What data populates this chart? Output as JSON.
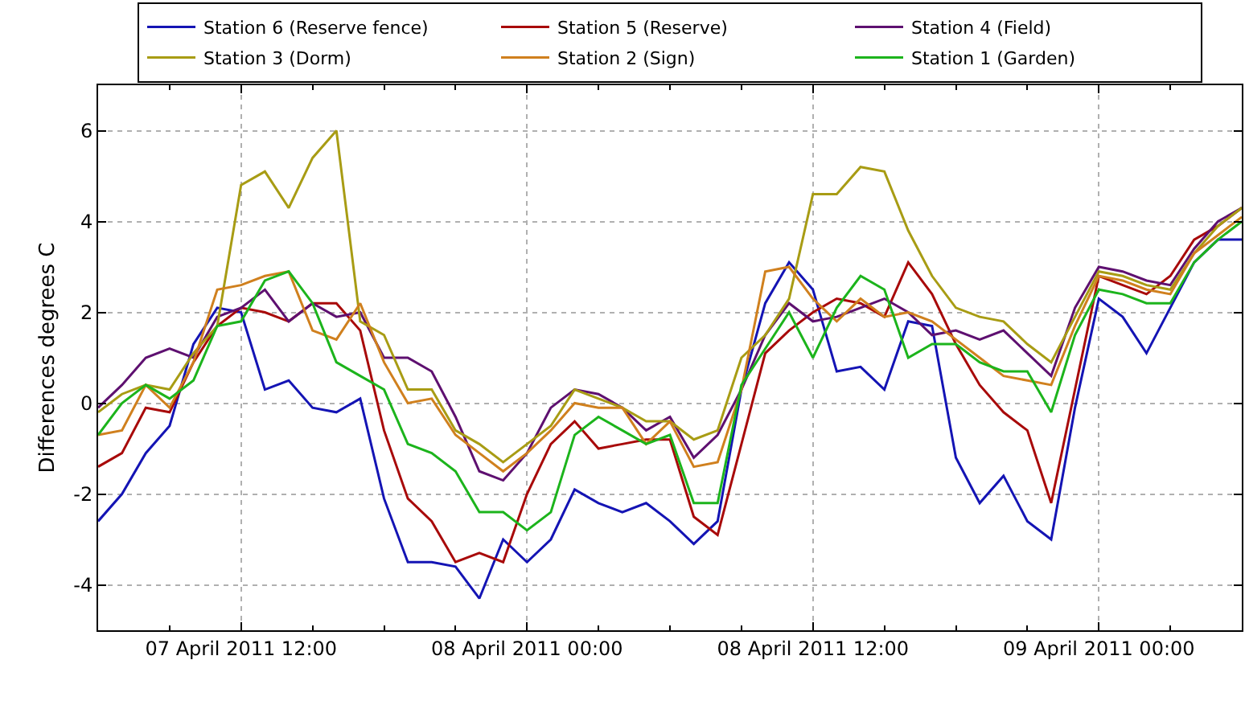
{
  "chart_data": {
    "type": "line",
    "ylabel": "Differences degrees C",
    "x": [
      "2011-04-07T06:00",
      "2011-04-07T07:00",
      "2011-04-07T08:00",
      "2011-04-07T09:00",
      "2011-04-07T10:00",
      "2011-04-07T11:00",
      "2011-04-07T12:00",
      "2011-04-07T13:00",
      "2011-04-07T14:00",
      "2011-04-07T15:00",
      "2011-04-07T16:00",
      "2011-04-07T17:00",
      "2011-04-07T18:00",
      "2011-04-07T19:00",
      "2011-04-07T20:00",
      "2011-04-07T21:00",
      "2011-04-07T22:00",
      "2011-04-07T23:00",
      "2011-04-08T00:00",
      "2011-04-08T01:00",
      "2011-04-08T02:00",
      "2011-04-08T03:00",
      "2011-04-08T04:00",
      "2011-04-08T05:00",
      "2011-04-08T06:00",
      "2011-04-08T07:00",
      "2011-04-08T08:00",
      "2011-04-08T09:00",
      "2011-04-08T10:00",
      "2011-04-08T11:00",
      "2011-04-08T12:00",
      "2011-04-08T13:00",
      "2011-04-08T14:00",
      "2011-04-08T15:00",
      "2011-04-08T16:00",
      "2011-04-08T17:00",
      "2011-04-08T18:00",
      "2011-04-08T19:00",
      "2011-04-08T20:00",
      "2011-04-08T21:00",
      "2011-04-08T22:00",
      "2011-04-08T23:00",
      "2011-04-09T00:00",
      "2011-04-09T01:00",
      "2011-04-09T02:00",
      "2011-04-09T03:00",
      "2011-04-09T04:00",
      "2011-04-09T05:00",
      "2011-04-09T06:00"
    ],
    "series": [
      {
        "name": "Station 6 (Reserve fence)",
        "color": "#1414b4",
        "values": [
          -2.6,
          -2.0,
          -1.1,
          -0.5,
          1.3,
          2.1,
          2.0,
          0.3,
          0.5,
          -0.1,
          -0.2,
          0.1,
          -2.1,
          -3.5,
          -3.5,
          -3.6,
          -4.3,
          -3.0,
          -3.5,
          -3.0,
          -1.9,
          -2.2,
          -2.4,
          -2.2,
          -2.6,
          -3.1,
          -2.6,
          0.3,
          2.2,
          3.1,
          2.5,
          0.7,
          0.8,
          0.3,
          1.8,
          1.7,
          -1.2,
          -2.2,
          -1.6,
          -2.6,
          -3.0,
          -0.1,
          2.3,
          1.9,
          1.1,
          2.1,
          3.1,
          3.6,
          3.6
        ]
      },
      {
        "name": "Station 5 (Reserve)",
        "color": "#a80a0a",
        "values": [
          -1.4,
          -1.1,
          -0.1,
          -0.2,
          0.9,
          1.7,
          2.1,
          2.0,
          1.8,
          2.2,
          2.2,
          1.6,
          -0.6,
          -2.1,
          -2.6,
          -3.5,
          -3.3,
          -3.5,
          -2.0,
          -0.9,
          -0.4,
          -1.0,
          -0.9,
          -0.8,
          -0.8,
          -2.5,
          -2.9,
          -0.9,
          1.1,
          1.6,
          2.0,
          2.3,
          2.2,
          1.9,
          3.1,
          2.4,
          1.3,
          0.4,
          -0.2,
          -0.6,
          -2.2,
          0.3,
          2.8,
          2.6,
          2.4,
          2.8,
          3.6,
          3.9,
          4.3
        ]
      },
      {
        "name": "Station 4 (Field)",
        "color": "#5e1070",
        "values": [
          -0.1,
          0.4,
          1.0,
          1.2,
          1.0,
          1.9,
          2.1,
          2.5,
          1.8,
          2.2,
          1.9,
          2.0,
          1.0,
          1.0,
          0.7,
          -0.3,
          -1.5,
          -1.7,
          -1.1,
          -0.1,
          0.3,
          0.2,
          -0.1,
          -0.6,
          -0.3,
          -1.2,
          -0.7,
          0.3,
          1.5,
          2.2,
          1.8,
          1.9,
          2.1,
          2.3,
          2.0,
          1.5,
          1.6,
          1.4,
          1.6,
          1.1,
          0.6,
          2.1,
          3.0,
          2.9,
          2.7,
          2.6,
          3.4,
          4.0,
          4.3
        ]
      },
      {
        "name": "Station 3 (Dorm)",
        "color": "#a89c14",
        "values": [
          -0.2,
          0.2,
          0.4,
          0.3,
          1.1,
          1.7,
          4.8,
          5.1,
          4.3,
          5.4,
          6.0,
          1.8,
          1.5,
          0.3,
          0.3,
          -0.6,
          -0.9,
          -1.3,
          -0.9,
          -0.5,
          0.3,
          0.1,
          -0.1,
          -0.4,
          -0.4,
          -0.8,
          -0.6,
          1.0,
          1.5,
          2.3,
          4.6,
          4.6,
          5.2,
          5.1,
          3.8,
          2.8,
          2.1,
          1.9,
          1.8,
          1.3,
          0.9,
          1.9,
          2.9,
          2.8,
          2.6,
          2.5,
          3.3,
          3.9,
          4.3
        ]
      },
      {
        "name": "Station 2 (Sign)",
        "color": "#d0801e",
        "values": [
          -0.7,
          -0.6,
          0.4,
          -0.1,
          0.9,
          2.5,
          2.6,
          2.8,
          2.9,
          1.6,
          1.4,
          2.2,
          0.9,
          0.0,
          0.1,
          -0.7,
          -1.1,
          -1.5,
          -1.1,
          -0.6,
          0.0,
          -0.1,
          -0.1,
          -0.9,
          -0.4,
          -1.4,
          -1.3,
          0.3,
          2.9,
          3.0,
          2.3,
          1.8,
          2.3,
          1.9,
          2.0,
          1.8,
          1.4,
          1.0,
          0.6,
          0.5,
          0.4,
          1.7,
          2.8,
          2.7,
          2.5,
          2.4,
          3.3,
          3.7,
          4.1
        ]
      },
      {
        "name": "Station 1 (Garden)",
        "color": "#1cb41c",
        "values": [
          -0.7,
          0.0,
          0.4,
          0.1,
          0.5,
          1.7,
          1.8,
          2.7,
          2.9,
          2.2,
          0.9,
          0.6,
          0.3,
          -0.9,
          -1.1,
          -1.5,
          -2.4,
          -2.4,
          -2.8,
          -2.4,
          -0.7,
          -0.3,
          -0.6,
          -0.9,
          -0.7,
          -2.2,
          -2.2,
          0.4,
          1.2,
          2.0,
          1.0,
          2.1,
          2.8,
          2.5,
          1.0,
          1.3,
          1.3,
          0.9,
          0.7,
          0.7,
          -0.2,
          1.5,
          2.5,
          2.4,
          2.2,
          2.2,
          3.1,
          3.6,
          4.0
        ]
      }
    ],
    "xlim": [
      "2011-04-07T06:00",
      "2011-04-09T06:00"
    ],
    "xticks": [
      {
        "value": "2011-04-07T09:00",
        "label": null
      },
      {
        "value": "2011-04-07T12:00",
        "label": "07 April 2011 12:00"
      },
      {
        "value": "2011-04-07T15:00",
        "label": null
      },
      {
        "value": "2011-04-07T18:00",
        "label": null
      },
      {
        "value": "2011-04-07T21:00",
        "label": null
      },
      {
        "value": "2011-04-08T00:00",
        "label": "08 April 2011 00:00"
      },
      {
        "value": "2011-04-08T03:00",
        "label": null
      },
      {
        "value": "2011-04-08T06:00",
        "label": null
      },
      {
        "value": "2011-04-08T09:00",
        "label": null
      },
      {
        "value": "2011-04-08T12:00",
        "label": "08 April 2011 12:00"
      },
      {
        "value": "2011-04-08T15:00",
        "label": null
      },
      {
        "value": "2011-04-08T18:00",
        "label": null
      },
      {
        "value": "2011-04-08T21:00",
        "label": null
      },
      {
        "value": "2011-04-09T00:00",
        "label": "09 April 2011 00:00"
      },
      {
        "value": "2011-04-09T03:00",
        "label": null
      }
    ],
    "ylim": [
      -5,
      7
    ],
    "yticks": [
      -4,
      -2,
      0,
      2,
      4,
      6
    ],
    "grid": true,
    "legend": "top",
    "marker": "none",
    "line_style": "solid"
  }
}
